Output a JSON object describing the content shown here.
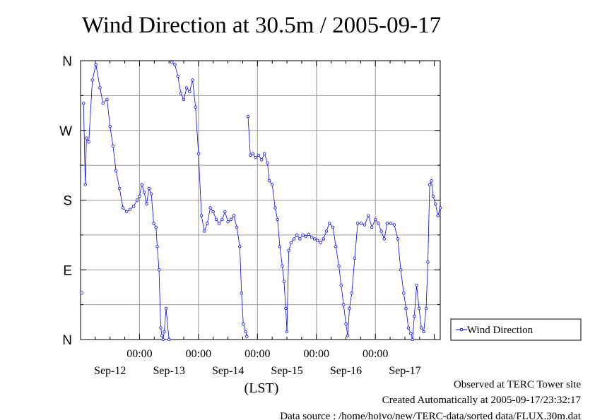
{
  "chart_data": {
    "type": "scatter",
    "title": "Wind Direction at 30.5m / 2005-09-17",
    "xlabel": "(LST)",
    "ylabel": "",
    "x_tick_labels": [
      "00:00",
      "00:00",
      "00:00",
      "00:00",
      "00:00"
    ],
    "date_labels": [
      "Sep-12",
      "Sep-13",
      "Sep-14",
      "Sep-15",
      "Sep-16",
      "Sep-17"
    ],
    "y_tick_labels": [
      "N",
      "W",
      "S",
      "E",
      "N"
    ],
    "ylim": [
      0,
      360
    ],
    "xlim_days": [
      0,
      6.1
    ],
    "grid": true,
    "legend": "right",
    "series": [
      {
        "name": "Wind Direction",
        "color": "#0000ff",
        "marker": "open-circle",
        "line": true,
        "points": [
          [
            0.02,
            60
          ],
          [
            0.05,
            305
          ],
          [
            0.08,
            200
          ],
          [
            0.1,
            260
          ],
          [
            0.14,
            255
          ],
          [
            0.2,
            335
          ],
          [
            0.26,
            355
          ],
          [
            0.33,
            325
          ],
          [
            0.38,
            305
          ],
          [
            0.45,
            310
          ],
          [
            0.5,
            275
          ],
          [
            0.55,
            250
          ],
          [
            0.6,
            218
          ],
          [
            0.66,
            195
          ],
          [
            0.72,
            170
          ],
          [
            0.78,
            165
          ],
          [
            0.84,
            168
          ],
          [
            0.9,
            172
          ],
          [
            0.96,
            180
          ],
          [
            1.0,
            185
          ],
          [
            1.04,
            200
          ],
          [
            1.08,
            190
          ],
          [
            1.12,
            175
          ],
          [
            1.16,
            195
          ],
          [
            1.2,
            188
          ],
          [
            1.24,
            150
          ],
          [
            1.28,
            145
          ],
          [
            1.3,
            120
          ],
          [
            1.33,
            90
          ],
          [
            1.36,
            15
          ],
          [
            1.38,
            5
          ],
          [
            1.4,
            0
          ],
          [
            1.42,
            10
          ],
          [
            1.45,
            40
          ],
          [
            1.5,
            0
          ],
          [
            1.55,
            358
          ],
          [
            1.6,
            355
          ],
          [
            1.65,
            340
          ],
          [
            1.7,
            318
          ],
          [
            1.75,
            310
          ],
          [
            1.8,
            325
          ],
          [
            1.85,
            320
          ],
          [
            1.9,
            335
          ],
          [
            1.95,
            300
          ],
          [
            2.0,
            240
          ],
          [
            2.05,
            160
          ],
          [
            2.1,
            140
          ],
          [
            2.15,
            150
          ],
          [
            2.2,
            170
          ],
          [
            2.25,
            165
          ],
          [
            2.3,
            155
          ],
          [
            2.35,
            150
          ],
          [
            2.4,
            155
          ],
          [
            2.45,
            165
          ],
          [
            2.5,
            152
          ],
          [
            2.55,
            155
          ],
          [
            2.6,
            160
          ],
          [
            2.65,
            145
          ],
          [
            2.7,
            120
          ],
          [
            2.73,
            60
          ],
          [
            2.76,
            20
          ],
          [
            2.8,
            10
          ],
          [
            2.82,
            4
          ],
          [
            2.84,
            288
          ],
          [
            2.88,
            238
          ],
          [
            2.92,
            240
          ],
          [
            2.97,
            235
          ],
          [
            3.02,
            238
          ],
          [
            3.07,
            232
          ],
          [
            3.12,
            240
          ],
          [
            3.17,
            228
          ],
          [
            3.2,
            205
          ],
          [
            3.25,
            200
          ],
          [
            3.3,
            170
          ],
          [
            3.34,
            155
          ],
          [
            3.38,
            120
          ],
          [
            3.42,
            95
          ],
          [
            3.45,
            75
          ],
          [
            3.48,
            40
          ],
          [
            3.5,
            10
          ],
          [
            3.53,
            115
          ],
          [
            3.57,
            125
          ],
          [
            3.62,
            130
          ],
          [
            3.67,
            135
          ],
          [
            3.72,
            130
          ],
          [
            3.77,
            135
          ],
          [
            3.82,
            133
          ],
          [
            3.87,
            136
          ],
          [
            3.92,
            132
          ],
          [
            3.97,
            130
          ],
          [
            4.02,
            128
          ],
          [
            4.07,
            125
          ],
          [
            4.12,
            130
          ],
          [
            4.17,
            140
          ],
          [
            4.22,
            150
          ],
          [
            4.28,
            145
          ],
          [
            4.33,
            120
          ],
          [
            4.38,
            95
          ],
          [
            4.42,
            70
          ],
          [
            4.46,
            45
          ],
          [
            4.5,
            20
          ],
          [
            4.53,
            5
          ],
          [
            4.56,
            40
          ],
          [
            4.6,
            60
          ],
          [
            4.65,
            105
          ],
          [
            4.7,
            150
          ],
          [
            4.76,
            150
          ],
          [
            4.82,
            148
          ],
          [
            4.88,
            160
          ],
          [
            4.94,
            145
          ],
          [
            5.0,
            155
          ],
          [
            5.05,
            150
          ],
          [
            5.1,
            140
          ],
          [
            5.15,
            130
          ],
          [
            5.2,
            150
          ],
          [
            5.26,
            150
          ],
          [
            5.32,
            148
          ],
          [
            5.38,
            130
          ],
          [
            5.43,
            90
          ],
          [
            5.48,
            60
          ],
          [
            5.52,
            40
          ],
          [
            5.56,
            15
          ],
          [
            5.6,
            8
          ],
          [
            5.63,
            0
          ],
          [
            5.66,
            30
          ],
          [
            5.7,
            70
          ],
          [
            5.74,
            40
          ],
          [
            5.78,
            15
          ],
          [
            5.82,
            10
          ],
          [
            5.86,
            40
          ],
          [
            5.89,
            100
          ],
          [
            5.92,
            200
          ],
          [
            5.95,
            205
          ],
          [
            5.98,
            185
          ],
          [
            6.02,
            175
          ],
          [
            6.06,
            160
          ],
          [
            6.1,
            170
          ]
        ]
      }
    ]
  },
  "footer": {
    "line1": "Observed at TERC Tower site",
    "line2": "Created Automatically at 2005-09-17/23:32:17",
    "line3": "Data source : /home/hoivo/new/TERC-data/sorted  data/FLUX.30m.dat"
  }
}
